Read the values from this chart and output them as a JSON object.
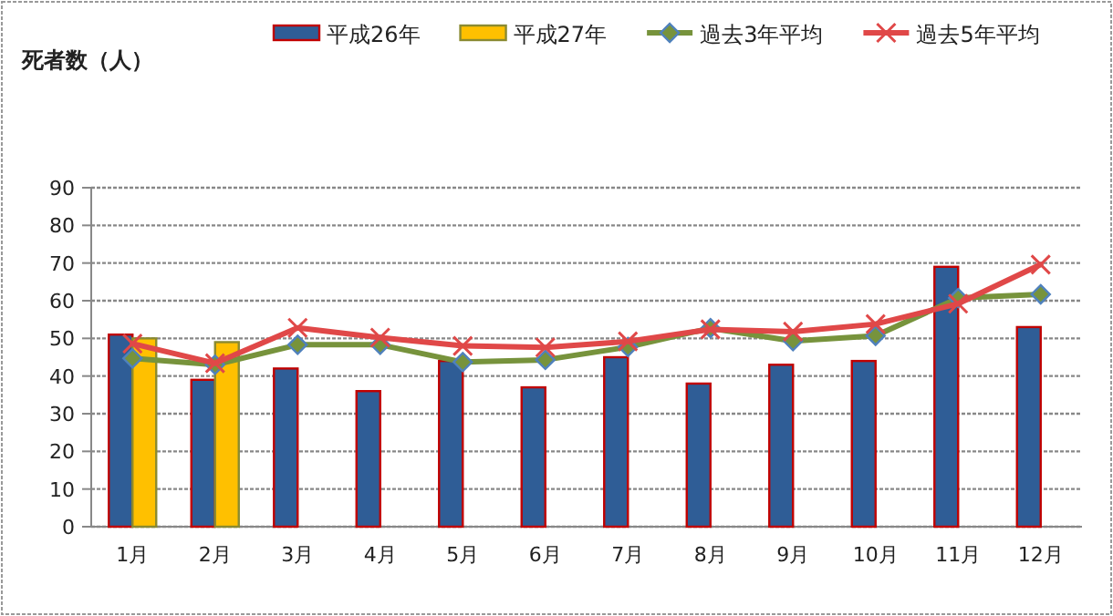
{
  "chart_data": {
    "type": "bar",
    "ylabel": "死者数（人）",
    "categories": [
      "1月",
      "2月",
      "3月",
      "4月",
      "5月",
      "6月",
      "7月",
      "8月",
      "9月",
      "10月",
      "11月",
      "12月"
    ],
    "series": [
      {
        "name": "平成26年",
        "color": "#2f5d96",
        "values": [
          51,
          39,
          42,
          36,
          44,
          37,
          45,
          38,
          43,
          44,
          69,
          53
        ]
      },
      {
        "name": "平成27年",
        "color": "#ffc000",
        "values": [
          50,
          49,
          null,
          null,
          null,
          null,
          null,
          null,
          null,
          null,
          null,
          null
        ]
      },
      {
        "name": "過去3年平均",
        "type": "line",
        "color": "#77933c",
        "marker": "diamond",
        "values": [
          44.7,
          43,
          48.3,
          48.3,
          43.7,
          44.3,
          47.7,
          52.7,
          49.3,
          50.7,
          60.7,
          61.7
        ]
      },
      {
        "name": "過去5年平均",
        "type": "line",
        "color": "#e04848",
        "marker": "cross",
        "values": [
          48.6,
          43.4,
          52.8,
          50.2,
          48,
          47.6,
          49.2,
          52.4,
          51.8,
          53.8,
          59.2,
          69.6
        ]
      }
    ],
    "ylim": [
      0,
      90
    ],
    "yticks": [
      0,
      10,
      20,
      30,
      40,
      50,
      60,
      70,
      80,
      90
    ],
    "grid": "y",
    "legend": "top"
  }
}
